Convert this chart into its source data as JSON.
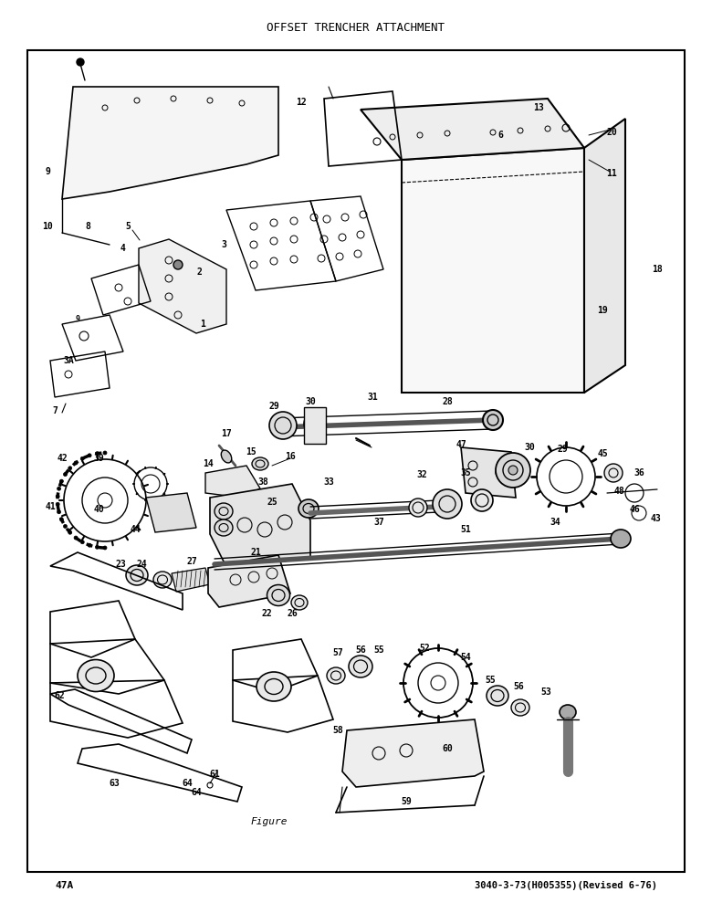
{
  "title": "OFFSET TRENCHER ATTACHMENT",
  "footer_left": "47A",
  "footer_right": "3040-3-73(H005355)(Revised 6-76)",
  "figure_label": "Figure",
  "bg": "#ffffff",
  "fg": "#000000"
}
